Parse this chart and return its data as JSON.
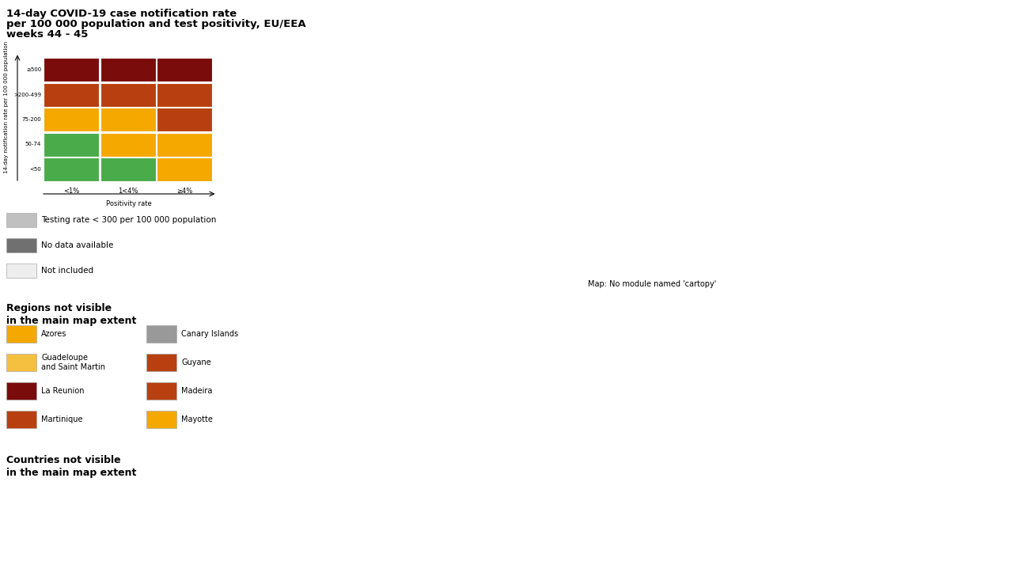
{
  "title_line1": "14-day COVID-19 case notification rate",
  "title_line2": "per 100 000 population and test positivity, EU/EEA",
  "title_line3": "weeks 44 - 45",
  "background_color": "#ffffff",
  "ocean_color": "#dde8ef",
  "not_included_color": "#e0e0e0",
  "legend_matrix_colors": [
    [
      "#4aab4a",
      "#4aab4a",
      "#f5a800"
    ],
    [
      "#4aab4a",
      "#f5a800",
      "#f5a800"
    ],
    [
      "#f5a800",
      "#f5a800",
      "#b84010"
    ],
    [
      "#b84010",
      "#b84010",
      "#b84010"
    ],
    [
      "#7a0c0c",
      "#7a0c0c",
      "#7a0c0c"
    ]
  ],
  "legend_matrix_rows": [
    "<50",
    "50-74",
    "75-200",
    ">200-499",
    "≥500"
  ],
  "legend_matrix_cols": [
    "<1%",
    "1<4%",
    "≥4%"
  ],
  "country_colors": {
    "Ireland": "#7a0c0c",
    "United Kingdom": "#e0e0e0",
    "Portugal": "#f5a800",
    "Spain": "#999999",
    "France": "#b84010",
    "Belgium": "#7a0c0c",
    "Netherlands": "#7a0c0c",
    "Luxembourg": "#7a0c0c",
    "Germany": "#7a0c0c",
    "Switzerland": "#7a0c0c",
    "Austria": "#7a0c0c",
    "Italy": "#f5a800",
    "Slovenia": "#7a0c0c",
    "Croatia": "#b84010",
    "Bosnia and Herzegovina": "#e0e0e0",
    "Serbia": "#e0e0e0",
    "Montenegro": "#e0e0e0",
    "Albania": "#e0e0e0",
    "Macedonia": "#e0e0e0",
    "Greece": "#b84010",
    "Bulgaria": "#7a0c0c",
    "Romania": "#7a0c0c",
    "Moldova": "#e0e0e0",
    "Hungary": "#7a0c0c",
    "Slovakia": "#7a0c0c",
    "Czech Republic": "#7a0c0c",
    "Poland": "#7a0c0c",
    "Lithuania": "#7a0c0c",
    "Latvia": "#7a0c0c",
    "Estonia": "#7a0c0c",
    "Finland": "#b84010",
    "Sweden": "#b84010",
    "Norway": "#b84010",
    "Denmark": "#b84010",
    "Iceland": "#b84010",
    "Belarus": "#e0e0e0",
    "Ukraine": "#e0e0e0",
    "Russia": "#e0e0e0",
    "Turkey": "#e0e0e0",
    "Cyprus": "#b84010",
    "Malta": "#b84010",
    "Kosovo": "#e0e0e0",
    "Andorra": "#7a0c0c",
    "Monaco": "#7a0c0c",
    "San Marino": "#7a0c0c",
    "Liechtenstein": "#7a0c0c"
  },
  "extra_legend": [
    {
      "color": "#c0c0c0",
      "label": "Testing rate < 300 per 100 000 population"
    },
    {
      "color": "#707070",
      "label": "No data available"
    },
    {
      "color": "#eeeeee",
      "label": "Not included"
    }
  ],
  "regions_not_visible": [
    {
      "color": "#f5a800",
      "label": "Azores",
      "col": 0
    },
    {
      "color": "#f5c040",
      "label": "Guadeloupe\nand Saint Martin",
      "col": 0
    },
    {
      "color": "#7a0c0c",
      "label": "La Reunion",
      "col": 0
    },
    {
      "color": "#b84010",
      "label": "Martinique",
      "col": 0
    },
    {
      "color": "#999999",
      "label": "Canary Islands",
      "col": 1
    },
    {
      "color": "#b84010",
      "label": "Guyane",
      "col": 1
    },
    {
      "color": "#b84010",
      "label": "Madeira",
      "col": 1
    },
    {
      "color": "#f5a800",
      "label": "Mayotte",
      "col": 1
    }
  ],
  "figsize": [
    12.79,
    7.19
  ],
  "dpi": 100
}
